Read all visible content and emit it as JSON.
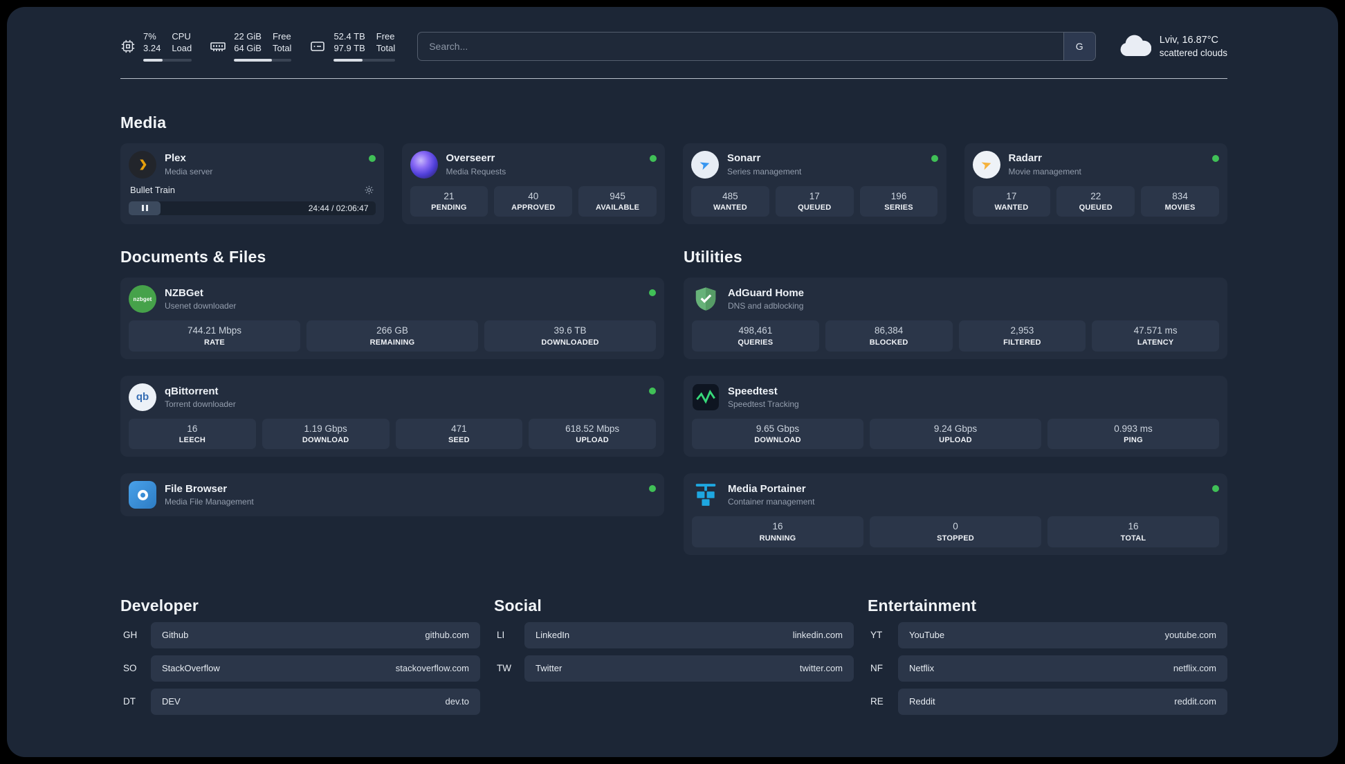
{
  "topbar": {
    "cpu": {
      "value_top": "7%",
      "value_bottom": "3.24",
      "label_top": "CPU",
      "label_bottom": "Load",
      "progress": 40
    },
    "ram": {
      "value_top": "22 GiB",
      "value_bottom": "64 GiB",
      "label_top": "Free",
      "label_bottom": "Total",
      "progress": 66
    },
    "disk": {
      "value_top": "52.4 TB",
      "value_bottom": "97.9 TB",
      "label_top": "Free",
      "label_bottom": "Total",
      "progress": 47
    },
    "search": {
      "placeholder": "Search...",
      "engine_label": "G"
    },
    "weather": {
      "location": "Lviv, 16.87°C",
      "condition": "scattered clouds"
    }
  },
  "colors": {
    "status_online": "#40c057",
    "background": "#1c2636",
    "card": "#232d3e",
    "tile": "#2b3649",
    "plex_amber": "#e5a00d",
    "speedtest_green": "#37d97a",
    "portainer_blue": "#1ea7e0",
    "adguard_green": "#67b279"
  },
  "media": {
    "title": "Media",
    "plex": {
      "name": "Plex",
      "desc": "Media server",
      "player": {
        "track": "Bullet Train",
        "time": "24:44 / 02:06:47"
      }
    },
    "overseerr": {
      "name": "Overseerr",
      "desc": "Media Requests",
      "stats": [
        {
          "value": "21",
          "label": "PENDING"
        },
        {
          "value": "40",
          "label": "APPROVED"
        },
        {
          "value": "945",
          "label": "AVAILABLE"
        }
      ]
    },
    "sonarr": {
      "name": "Sonarr",
      "desc": "Series management",
      "stats": [
        {
          "value": "485",
          "label": "WANTED"
        },
        {
          "value": "17",
          "label": "QUEUED"
        },
        {
          "value": "196",
          "label": "SERIES"
        }
      ]
    },
    "radarr": {
      "name": "Radarr",
      "desc": "Movie management",
      "stats": [
        {
          "value": "17",
          "label": "WANTED"
        },
        {
          "value": "22",
          "label": "QUEUED"
        },
        {
          "value": "834",
          "label": "MOVIES"
        }
      ]
    }
  },
  "documents": {
    "title": "Documents & Files",
    "nzbget": {
      "name": "NZBGet",
      "desc": "Usenet downloader",
      "stats": [
        {
          "value": "744.21 Mbps",
          "label": "RATE"
        },
        {
          "value": "266 GB",
          "label": "REMAINING"
        },
        {
          "value": "39.6 TB",
          "label": "DOWNLOADED"
        }
      ]
    },
    "qbittorrent": {
      "name": "qBittorrent",
      "desc": "Torrent downloader",
      "stats": [
        {
          "value": "16",
          "label": "LEECH"
        },
        {
          "value": "1.19 Gbps",
          "label": "DOWNLOAD"
        },
        {
          "value": "471",
          "label": "SEED"
        },
        {
          "value": "618.52 Mbps",
          "label": "UPLOAD"
        }
      ]
    },
    "filebrowser": {
      "name": "File Browser",
      "desc": "Media File Management"
    }
  },
  "utilities": {
    "title": "Utilities",
    "adguard": {
      "name": "AdGuard Home",
      "desc": "DNS and adblocking",
      "stats": [
        {
          "value": "498,461",
          "label": "QUERIES"
        },
        {
          "value": "86,384",
          "label": "BLOCKED"
        },
        {
          "value": "2,953",
          "label": "FILTERED"
        },
        {
          "value": "47.571 ms",
          "label": "LATENCY"
        }
      ]
    },
    "speedtest": {
      "name": "Speedtest",
      "desc": "Speedtest Tracking",
      "stats": [
        {
          "value": "9.65 Gbps",
          "label": "DOWNLOAD"
        },
        {
          "value": "9.24 Gbps",
          "label": "UPLOAD"
        },
        {
          "value": "0.993 ms",
          "label": "PING"
        }
      ]
    },
    "portainer": {
      "name": "Media Portainer",
      "desc": "Container management",
      "stats": [
        {
          "value": "16",
          "label": "RUNNING"
        },
        {
          "value": "0",
          "label": "STOPPED"
        },
        {
          "value": "16",
          "label": "TOTAL"
        }
      ]
    }
  },
  "bookmarks": {
    "developer": {
      "title": "Developer",
      "items": [
        {
          "abbr": "GH",
          "name": "Github",
          "url": "github.com"
        },
        {
          "abbr": "SO",
          "name": "StackOverflow",
          "url": "stackoverflow.com"
        },
        {
          "abbr": "DT",
          "name": "DEV",
          "url": "dev.to"
        }
      ]
    },
    "social": {
      "title": "Social",
      "items": [
        {
          "abbr": "LI",
          "name": "LinkedIn",
          "url": "linkedin.com"
        },
        {
          "abbr": "TW",
          "name": "Twitter",
          "url": "twitter.com"
        }
      ]
    },
    "entertainment": {
      "title": "Entertainment",
      "items": [
        {
          "abbr": "YT",
          "name": "YouTube",
          "url": "youtube.com"
        },
        {
          "abbr": "NF",
          "name": "Netflix",
          "url": "netflix.com"
        },
        {
          "abbr": "RE",
          "name": "Reddit",
          "url": "reddit.com"
        }
      ]
    }
  }
}
